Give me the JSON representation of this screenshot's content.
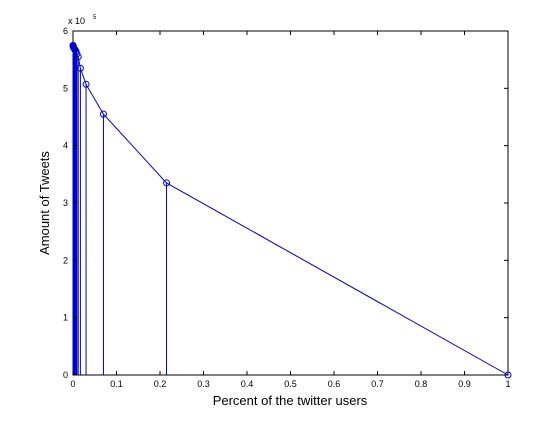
{
  "chart_data": {
    "type": "line",
    "style": "stem",
    "xlabel": "Percent of the twitter users",
    "ylabel": "Amount of Tweets",
    "exponent_label": {
      "base": "x 10",
      "power": "5"
    },
    "xlim": [
      0,
      1
    ],
    "ylim": [
      0,
      6
    ],
    "x_ticks": [
      0,
      0.1,
      0.2,
      0.3,
      0.4,
      0.5,
      0.6,
      0.7,
      0.8,
      0.9,
      1
    ],
    "x_tick_labels": [
      "0",
      "0.1",
      "0.2",
      "0.3",
      "0.4",
      "0.5",
      "0.6",
      "0.7",
      "0.8",
      "0.9",
      "1"
    ],
    "y_ticks": [
      0,
      1,
      2,
      3,
      4,
      5,
      6
    ],
    "y_tick_labels": [
      "0",
      "1",
      "2",
      "3",
      "4",
      "5",
      "6"
    ],
    "grid": false,
    "marker": "circle",
    "line_color": "#0000cc",
    "series": [
      {
        "x": [
          0.0,
          0.0005,
          0.001,
          0.0015,
          0.002,
          0.003,
          0.004,
          0.005,
          0.007,
          0.009,
          0.012,
          0.017,
          0.03,
          0.07,
          0.215,
          1.0
        ],
        "values": [
          5.75,
          5.73,
          5.72,
          5.71,
          5.7,
          5.69,
          5.68,
          5.67,
          5.64,
          5.6,
          5.55,
          5.35,
          5.07,
          4.55,
          3.35,
          0.0
        ]
      }
    ]
  }
}
